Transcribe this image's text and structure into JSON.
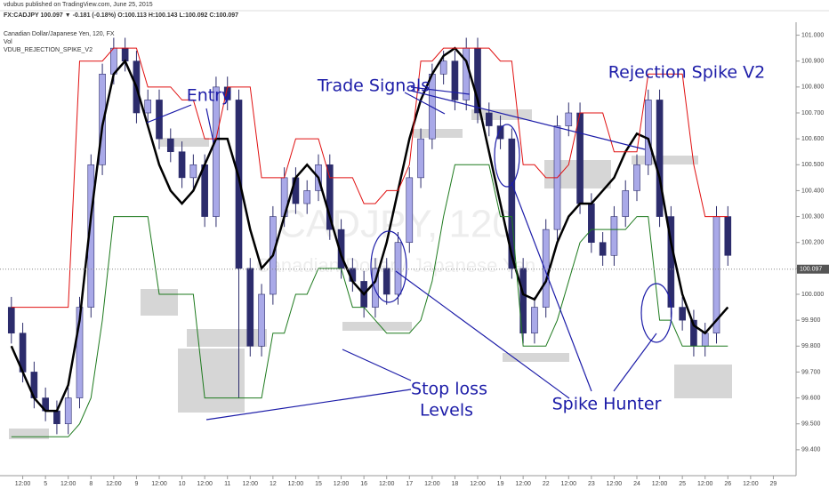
{
  "header": {
    "publisher": "vdubus published on TradingView.com, June 25, 2015",
    "quote": "FX:CADJPY 100.097 ▼ -0.181 (-0.18%) O:100.113 H:100.143 L:100.092 C:100.097",
    "symbol": "Canadian Dollar/Japanese Yen, 120, FX",
    "volume": "Vol",
    "indicator": "VDUB_REJECTION_SPIKE_V2",
    "watermark": "CADJPY, 120",
    "watermark_sub": "Canadian Dollar / Japanese Yen"
  },
  "chart_data": {
    "type": "candlestick",
    "annotations": [
      "Entry",
      "Trade Signals",
      "Rejection Spike V2",
      "Stop loss",
      "Levels",
      "Spike Hunter"
    ],
    "up_color": "#a9a9e8",
    "down_color": "#2c2c6c",
    "xlim": [
      -1,
      69
    ],
    "ylim": [
      99.3,
      101.05
    ],
    "last_price": {
      "value": 100.097,
      "label": "100.097"
    },
    "xticks": [
      {
        "value": 1,
        "label": "12:00"
      },
      {
        "value": 3,
        "label": "5"
      },
      {
        "value": 5,
        "label": "12:00"
      },
      {
        "value": 7,
        "label": "8"
      },
      {
        "value": 9,
        "label": "12:00"
      },
      {
        "value": 11,
        "label": "9"
      },
      {
        "value": 13,
        "label": "12:00"
      },
      {
        "value": 15,
        "label": "10"
      },
      {
        "value": 17,
        "label": "12:00"
      },
      {
        "value": 19,
        "label": "11"
      },
      {
        "value": 21,
        "label": "12:00"
      },
      {
        "value": 23,
        "label": "12"
      },
      {
        "value": 25,
        "label": "12:00"
      },
      {
        "value": 27,
        "label": "15"
      },
      {
        "value": 29,
        "label": "12:00"
      },
      {
        "value": 31,
        "label": "16"
      },
      {
        "value": 33,
        "label": "12:00"
      },
      {
        "value": 35,
        "label": "17"
      },
      {
        "value": 37,
        "label": "12:00"
      },
      {
        "value": 39,
        "label": "18"
      },
      {
        "value": 41,
        "label": "12:00"
      },
      {
        "value": 43,
        "label": "19"
      },
      {
        "value": 45,
        "label": "12:00"
      },
      {
        "value": 47,
        "label": "22"
      },
      {
        "value": 49,
        "label": "12:00"
      },
      {
        "value": 51,
        "label": "23"
      },
      {
        "value": 53,
        "label": "12:00"
      },
      {
        "value": 55,
        "label": "24"
      },
      {
        "value": 57,
        "label": "12:00"
      },
      {
        "value": 59,
        "label": "25"
      },
      {
        "value": 61,
        "label": "12:00"
      },
      {
        "value": 63,
        "label": "26"
      },
      {
        "value": 65,
        "label": "12:00"
      },
      {
        "value": 67,
        "label": "29"
      }
    ],
    "yticks": [
      {
        "value": 99.4,
        "label": "99.400"
      },
      {
        "value": 99.5,
        "label": "99.500"
      },
      {
        "value": 99.6,
        "label": "99.600"
      },
      {
        "value": 99.7,
        "label": "99.700"
      },
      {
        "value": 99.8,
        "label": "99.800"
      },
      {
        "value": 99.9,
        "label": "99.900"
      },
      {
        "value": 100.0,
        "label": "100.000"
      },
      {
        "value": 100.1,
        "label": "100.100"
      },
      {
        "value": 100.2,
        "label": "100.200"
      },
      {
        "value": 100.3,
        "label": "100.300"
      },
      {
        "value": 100.4,
        "label": "100.400"
      },
      {
        "value": 100.5,
        "label": "100.500"
      },
      {
        "value": 100.6,
        "label": "100.600"
      },
      {
        "value": 100.7,
        "label": "100.700"
      },
      {
        "value": 100.8,
        "label": "100.800"
      },
      {
        "value": 100.9,
        "label": "100.900"
      },
      {
        "value": 101.0,
        "label": "101.000"
      }
    ],
    "open": [
      99.95,
      99.85,
      99.7,
      99.6,
      99.55,
      99.5,
      99.6,
      99.95,
      100.5,
      100.85,
      100.95,
      100.9,
      100.7,
      100.75,
      100.6,
      100.55,
      100.45,
      100.5,
      100.3,
      100.8,
      100.75,
      100.1,
      99.8,
      100.0,
      100.3,
      100.45,
      100.35,
      100.4,
      100.5,
      100.25,
      100.1,
      100.05,
      99.95,
      100.1,
      100.0,
      100.2,
      100.45,
      100.6,
      100.85,
      100.9,
      100.75,
      100.95,
      100.7,
      100.65,
      100.6,
      100.1,
      99.85,
      99.95,
      100.25,
      100.65,
      100.7,
      100.35,
      100.2,
      100.15,
      100.3,
      100.4,
      100.5,
      100.75,
      100.3,
      99.95,
      99.9,
      99.8,
      99.85,
      100.3
    ],
    "high": [
      99.99,
      99.89,
      99.74,
      99.64,
      99.59,
      99.64,
      99.99,
      100.54,
      100.89,
      100.99,
      100.99,
      100.94,
      100.79,
      100.79,
      100.64,
      100.59,
      100.54,
      100.54,
      100.84,
      100.84,
      100.79,
      100.14,
      100.04,
      100.34,
      100.49,
      100.49,
      100.44,
      100.54,
      100.54,
      100.29,
      100.14,
      100.09,
      100.14,
      100.14,
      100.24,
      100.49,
      100.64,
      100.89,
      100.94,
      100.94,
      100.99,
      100.99,
      100.74,
      100.69,
      100.64,
      100.14,
      99.99,
      100.29,
      100.69,
      100.74,
      100.74,
      100.39,
      100.24,
      100.34,
      100.44,
      100.54,
      100.79,
      100.79,
      100.34,
      99.99,
      99.94,
      99.89,
      100.34,
      100.34
    ],
    "low": [
      99.81,
      99.66,
      99.56,
      99.51,
      99.46,
      99.46,
      99.56,
      99.91,
      100.46,
      100.81,
      100.86,
      100.66,
      100.66,
      100.56,
      100.51,
      100.41,
      100.41,
      100.26,
      100.26,
      100.71,
      99.6,
      99.76,
      99.76,
      99.96,
      100.26,
      100.31,
      100.31,
      100.36,
      100.21,
      100.06,
      100.01,
      99.91,
      99.91,
      99.96,
      99.96,
      100.16,
      100.41,
      100.56,
      100.81,
      100.71,
      100.71,
      100.66,
      100.61,
      100.56,
      100.06,
      99.81,
      99.81,
      99.91,
      100.21,
      100.61,
      100.31,
      100.16,
      100.11,
      100.11,
      100.26,
      100.36,
      100.46,
      100.26,
      99.91,
      99.86,
      99.76,
      99.76,
      99.81,
      100.11
    ],
    "close": [
      99.85,
      99.7,
      99.6,
      99.55,
      99.5,
      99.6,
      99.95,
      100.5,
      100.85,
      100.95,
      100.9,
      100.7,
      100.75,
      100.6,
      100.55,
      100.45,
      100.5,
      100.3,
      100.8,
      100.75,
      100.1,
      99.8,
      100.0,
      100.3,
      100.45,
      100.35,
      100.4,
      100.5,
      100.25,
      100.1,
      100.05,
      99.95,
      100.1,
      100.0,
      100.2,
      100.45,
      100.6,
      100.85,
      100.9,
      100.75,
      100.95,
      100.7,
      100.65,
      100.6,
      100.1,
      99.85,
      99.95,
      100.25,
      100.65,
      100.7,
      100.35,
      100.2,
      100.15,
      100.3,
      100.4,
      100.5,
      100.75,
      100.3,
      99.95,
      99.9,
      99.8,
      99.85,
      100.3,
      100.15
    ],
    "lines": [
      {
        "color": "#000000",
        "values": [
          99.8,
          99.7,
          99.6,
          99.55,
          99.55,
          99.65,
          99.9,
          100.3,
          100.65,
          100.85,
          100.9,
          100.8,
          100.65,
          100.5,
          100.4,
          100.35,
          100.4,
          100.5,
          100.6,
          100.6,
          100.45,
          100.25,
          100.1,
          100.15,
          100.3,
          100.45,
          100.5,
          100.45,
          100.3,
          100.15,
          100.05,
          100.0,
          100.05,
          100.2,
          100.4,
          100.6,
          100.75,
          100.85,
          100.92,
          100.95,
          100.9,
          100.75,
          100.55,
          100.35,
          100.15,
          100.0,
          99.98,
          100.05,
          100.2,
          100.3,
          100.35,
          100.35,
          100.4,
          100.45,
          100.55,
          100.62,
          100.6,
          100.45,
          100.2,
          100.0,
          99.88,
          99.85,
          99.9,
          99.95
        ]
      },
      {
        "color": "#e01010",
        "values": [
          99.95,
          99.95,
          99.95,
          99.95,
          99.95,
          99.95,
          100.9,
          100.9,
          100.9,
          100.95,
          100.95,
          100.95,
          100.8,
          100.8,
          100.8,
          100.75,
          100.75,
          100.6,
          100.6,
          100.8,
          100.8,
          100.8,
          100.45,
          100.45,
          100.45,
          100.6,
          100.6,
          100.6,
          100.45,
          100.45,
          100.45,
          100.35,
          100.35,
          100.4,
          100.4,
          100.5,
          100.9,
          100.9,
          100.95,
          100.95,
          100.95,
          100.95,
          100.95,
          100.9,
          100.9,
          100.5,
          100.5,
          100.45,
          100.45,
          100.5,
          100.7,
          100.7,
          100.7,
          100.55,
          100.55,
          100.55,
          100.85,
          100.85,
          100.85,
          100.85,
          100.5,
          100.3,
          100.3,
          100.3
        ]
      },
      {
        "color": "#1e7a1e",
        "values": [
          99.45,
          99.45,
          99.45,
          99.45,
          99.45,
          99.45,
          99.5,
          99.6,
          99.9,
          100.3,
          100.3,
          100.3,
          100.3,
          100.0,
          100.0,
          100.0,
          100.0,
          99.6,
          99.6,
          99.6,
          99.6,
          99.6,
          99.6,
          99.85,
          99.85,
          100.0,
          100.0,
          100.1,
          100.1,
          100.1,
          99.95,
          99.95,
          99.9,
          99.85,
          99.85,
          99.85,
          99.9,
          100.05,
          100.3,
          100.5,
          100.5,
          100.5,
          100.5,
          100.3,
          100.3,
          99.8,
          99.8,
          99.8,
          99.9,
          100.05,
          100.2,
          100.25,
          100.25,
          100.25,
          100.25,
          100.3,
          100.3,
          99.9,
          99.9,
          99.8,
          99.8,
          99.8,
          99.8,
          99.8
        ]
      }
    ]
  }
}
